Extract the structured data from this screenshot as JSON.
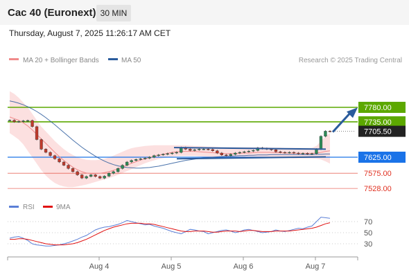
{
  "header": {
    "instrument": "Cac 40 (Euronext)",
    "timeframe": "30 MIN",
    "datetime": "Thursday, August 7, 2025 11:26:17 AM CET"
  },
  "legend": {
    "ma20_label": "MA 20 + Bollinger Bands",
    "ma20_color": "#f08a8a",
    "ma50_label": "MA 50",
    "ma50_color": "#2a5b9c",
    "credit": "Research © 2025 Trading Central"
  },
  "rsi_legend": {
    "rsi_label": "RSI",
    "rsi_color": "#5b7fd6",
    "ma_label": "9MA",
    "ma_color": "#e01010"
  },
  "price_levels": [
    {
      "label": "7780.00",
      "value": 7780,
      "style": "resistance",
      "color": "#5ca800"
    },
    {
      "label": "7735.00",
      "value": 7735,
      "style": "resistance",
      "color": "#5ca800"
    },
    {
      "label": "7705.50",
      "value": 7705.5,
      "style": "current",
      "color": "#222222"
    },
    {
      "label": "7625.00",
      "value": 7625,
      "style": "pivot",
      "color": "#1a73e8"
    },
    {
      "label": "7575.00",
      "value": 7575,
      "style": "support",
      "color": "#e03020"
    },
    {
      "label": "7528.00",
      "value": 7528,
      "style": "support",
      "color": "#e03020"
    }
  ],
  "rsi_axis": [
    "70",
    "50",
    "30"
  ],
  "x_axis": [
    "Aug 4",
    "Aug 5",
    "Aug 6",
    "Aug 7"
  ],
  "chart_data": {
    "type": "candlestick",
    "title": "Cac 40 (Euronext)",
    "timeframe": "30 MIN",
    "x_ticks": [
      "Aug 4",
      "Aug 5",
      "Aug 6",
      "Aug 7"
    ],
    "price_series": [
      7740,
      7735,
      7736,
      7738,
      7739,
      7720,
      7680,
      7650,
      7640,
      7630,
      7620,
      7610,
      7600,
      7590,
      7580,
      7570,
      7560,
      7565,
      7570,
      7565,
      7560,
      7566,
      7575,
      7580,
      7590,
      7600,
      7610,
      7615,
      7618,
      7620,
      7622,
      7625,
      7630,
      7632,
      7634,
      7636,
      7638,
      7640,
      7655,
      7650,
      7646,
      7648,
      7650,
      7650,
      7649,
      7645,
      7638,
      7632,
      7630,
      7634,
      7638,
      7640,
      7642,
      7644,
      7646,
      7654,
      7652,
      7650,
      7648,
      7642,
      7640,
      7639,
      7640,
      7638,
      7636,
      7637,
      7635,
      7636,
      7650,
      7690,
      7706,
      7705.5
    ],
    "ma20_series": [
      7750,
      7745,
      7740,
      7732,
      7722,
      7710,
      7696,
      7682,
      7668,
      7654,
      7640,
      7627,
      7615,
      7604,
      7594,
      7586,
      7580,
      7576,
      7574,
      7574,
      7575,
      7577,
      7580,
      7584,
      7589,
      7594,
      7600,
      7606,
      7611,
      7616,
      7620,
      7624,
      7628,
      7631,
      7634,
      7637,
      7640,
      7642,
      7643,
      7643,
      7643,
      7643,
      7642,
      7641,
      7640,
      7639,
      7638,
      7637,
      7636,
      7636,
      7636,
      7637,
      7638,
      7638,
      7639,
      7640,
      7640,
      7640,
      7640,
      7639,
      7639,
      7638,
      7638,
      7637,
      7637,
      7637,
      7637,
      7637,
      7638,
      7640,
      7643,
      7645
    ],
    "ma50_series": [
      7800,
      7797,
      7793,
      7788,
      7782,
      7775,
      7767,
      7758,
      7748,
      7737,
      7726,
      7714,
      7702,
      7690,
      7678,
      7667,
      7656,
      7646,
      7637,
      7628,
      7620,
      7613,
      7607,
      7602,
      7598,
      7595,
      7593,
      7592,
      7591,
      7591,
      7592,
      7593,
      7595,
      7597,
      7600,
      7603,
      7606,
      7609,
      7612,
      7615,
      7617,
      7619,
      7621,
      7623,
      7624,
      7625,
      7626,
      7627,
      7628,
      7628,
      7629,
      7630,
      7630,
      7631,
      7631,
      7632,
      7632,
      7632,
      7633,
      7633,
      7633,
      7633,
      7633,
      7633,
      7633,
      7633,
      7633,
      7633,
      7634,
      7634,
      7635,
      7635
    ],
    "rsi_series": [
      40,
      42,
      43,
      40,
      36,
      30,
      28,
      27,
      26,
      26,
      27,
      28,
      30,
      32,
      35,
      38,
      42,
      45,
      50,
      55,
      58,
      60,
      61,
      63,
      65,
      68,
      72,
      70,
      68,
      66,
      64,
      65,
      62,
      60,
      58,
      55,
      52,
      50,
      48,
      52,
      56,
      55,
      53,
      52,
      48,
      50,
      52,
      54,
      55,
      53,
      50,
      52,
      55,
      56,
      54,
      52,
      50,
      51,
      52,
      55,
      53,
      52,
      54,
      56,
      58,
      57,
      60,
      62,
      70,
      78,
      77,
      76
    ],
    "rsi_ma_series": [
      38,
      38,
      39,
      39,
      38,
      36,
      34,
      32,
      30,
      29,
      28,
      28,
      28,
      29,
      30,
      32,
      35,
      38,
      42,
      46,
      50,
      54,
      57,
      60,
      62,
      64,
      66,
      67,
      67,
      67,
      66,
      66,
      65,
      63,
      61,
      59,
      57,
      55,
      53,
      52,
      52,
      53,
      53,
      53,
      52,
      51,
      51,
      52,
      53,
      53,
      53,
      52,
      53,
      54,
      54,
      53,
      52,
      52,
      52,
      53,
      53,
      53,
      53,
      54,
      55,
      56,
      57,
      58,
      60,
      63,
      66,
      68
    ],
    "bollinger_upper": [
      7830,
      7822,
      7810,
      7795,
      7780,
      7760,
      7740,
      7720,
      7705,
      7690,
      7675,
      7662,
      7650,
      7640,
      7632,
      7625,
      7620,
      7617,
      7616,
      7616,
      7617,
      7620,
      7624,
      7630,
      7636,
      7642,
      7648,
      7653,
      7656,
      7658,
      7660,
      7661,
      7662,
      7662,
      7662,
      7662,
      7662,
      7662,
      7662,
      7662,
      7661,
      7660,
      7660,
      7659,
      7658,
      7658,
      7657,
      7656,
      7656,
      7656,
      7656,
      7656,
      7656,
      7656,
      7656,
      7656,
      7656,
      7656,
      7655,
      7655,
      7655,
      7654,
      7654,
      7654,
      7654,
      7654,
      7654,
      7654,
      7660,
      7675,
      7690,
      7700
    ],
    "bollinger_lower": [
      7700,
      7690,
      7680,
      7665,
      7645,
      7625,
      7605,
      7585,
      7568,
      7555,
      7545,
      7538,
      7534,
      7532,
      7532,
      7534,
      7537,
      7540,
      7544,
      7548,
      7552,
      7556,
      7560,
      7565,
      7570,
      7576,
      7582,
      7588,
      7594,
      7600,
      7606,
      7611,
      7615,
      7619,
      7622,
      7624,
      7626,
      7628,
      7629,
      7629,
      7629,
      7629,
      7628,
      7627,
      7626,
      7625,
      7624,
      7623,
      7622,
      7622,
      7622,
      7622,
      7622,
      7622,
      7622,
      7622,
      7622,
      7622,
      7622,
      7622,
      7622,
      7622,
      7622,
      7621,
      7621,
      7621,
      7621,
      7621,
      7620,
      7618,
      7612,
      7605
    ],
    "levels": [
      7780,
      7735,
      7705.5,
      7625,
      7575,
      7528
    ],
    "rsi_levels": [
      70,
      50,
      30
    ],
    "trendlines": [
      {
        "name": "upper channel",
        "from": {
          "x": "Aug 5",
          "y": 7655
        },
        "to": {
          "x": "Aug 7",
          "y": 7650
        }
      },
      {
        "name": "lower channel",
        "from": {
          "x": "Aug 5",
          "y": 7620
        },
        "to": {
          "x": "Aug 7",
          "y": 7626
        }
      }
    ],
    "projection_arrow": {
      "from": 7705.5,
      "to": 7775
    }
  }
}
